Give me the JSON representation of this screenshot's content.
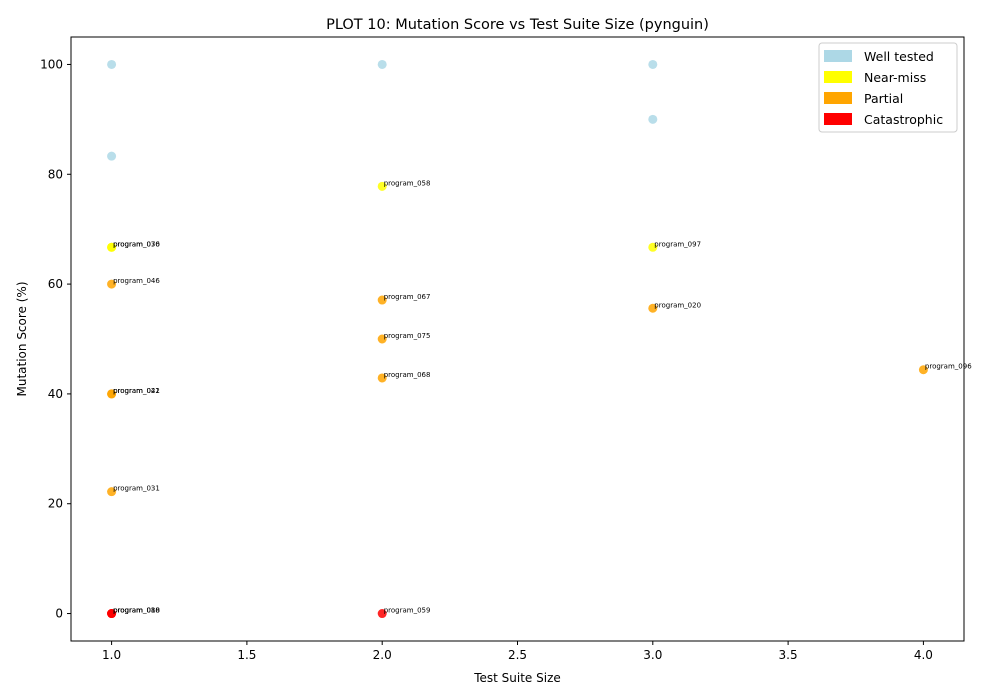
{
  "chart_data": {
    "type": "scatter",
    "title": "PLOT 10: Mutation Score vs Test Suite Size (pynguin)",
    "xlabel": "Test Suite Size",
    "ylabel": "Mutation Score (%)",
    "xlim": [
      0.85,
      4.15
    ],
    "ylim": [
      -5,
      105
    ],
    "xticks": [
      1.0,
      1.5,
      2.0,
      2.5,
      3.0,
      3.5,
      4.0
    ],
    "xtick_labels": [
      "1.0",
      "1.5",
      "2.0",
      "2.5",
      "3.0",
      "3.5",
      "4.0"
    ],
    "yticks": [
      0,
      20,
      40,
      60,
      80,
      100
    ],
    "ytick_labels": [
      "0",
      "20",
      "40",
      "60",
      "80",
      "100"
    ],
    "grid": false,
    "legend_position": "top-right",
    "categories": [
      {
        "key": "well",
        "name": "Well tested",
        "color": "#add8e6"
      },
      {
        "key": "near",
        "name": "Near-miss",
        "color": "#ffff00"
      },
      {
        "key": "partial",
        "name": "Partial",
        "color": "#ffa500"
      },
      {
        "key": "cat",
        "name": "Catastrophic",
        "color": "#ff0000"
      }
    ],
    "points": [
      {
        "x": 1,
        "y": 100,
        "cat": "well",
        "label": ""
      },
      {
        "x": 1,
        "y": 83.3,
        "cat": "well",
        "label": ""
      },
      {
        "x": 2,
        "y": 100,
        "cat": "well",
        "label": ""
      },
      {
        "x": 3,
        "y": 100,
        "cat": "well",
        "label": ""
      },
      {
        "x": 3,
        "y": 90,
        "cat": "well",
        "label": ""
      },
      {
        "x": 2,
        "y": 77.8,
        "cat": "near",
        "label": "program_058"
      },
      {
        "x": 1,
        "y": 66.7,
        "cat": "near",
        "label": "program_030"
      },
      {
        "x": 1,
        "y": 66.7,
        "cat": "near",
        "label": "program_076"
      },
      {
        "x": 3,
        "y": 66.7,
        "cat": "near",
        "label": "program_097"
      },
      {
        "x": 1,
        "y": 60,
        "cat": "partial",
        "label": "program_046"
      },
      {
        "x": 2,
        "y": 57.1,
        "cat": "partial",
        "label": "program_067"
      },
      {
        "x": 3,
        "y": 55.6,
        "cat": "partial",
        "label": "program_020"
      },
      {
        "x": 2,
        "y": 50,
        "cat": "partial",
        "label": "program_075"
      },
      {
        "x": 4,
        "y": 44.4,
        "cat": "partial",
        "label": "program_096"
      },
      {
        "x": 2,
        "y": 42.9,
        "cat": "partial",
        "label": "program_068"
      },
      {
        "x": 1,
        "y": 40,
        "cat": "partial",
        "label": "program_022"
      },
      {
        "x": 1,
        "y": 40,
        "cat": "partial",
        "label": "program_041"
      },
      {
        "x": 1,
        "y": 22.2,
        "cat": "partial",
        "label": "program_031"
      },
      {
        "x": 1,
        "y": 0,
        "cat": "cat",
        "label": "program_010"
      },
      {
        "x": 1,
        "y": 0,
        "cat": "cat",
        "label": "program_018"
      },
      {
        "x": 1,
        "y": 0,
        "cat": "cat",
        "label": "program_088"
      },
      {
        "x": 2,
        "y": 0,
        "cat": "cat",
        "label": "program_059"
      }
    ]
  }
}
